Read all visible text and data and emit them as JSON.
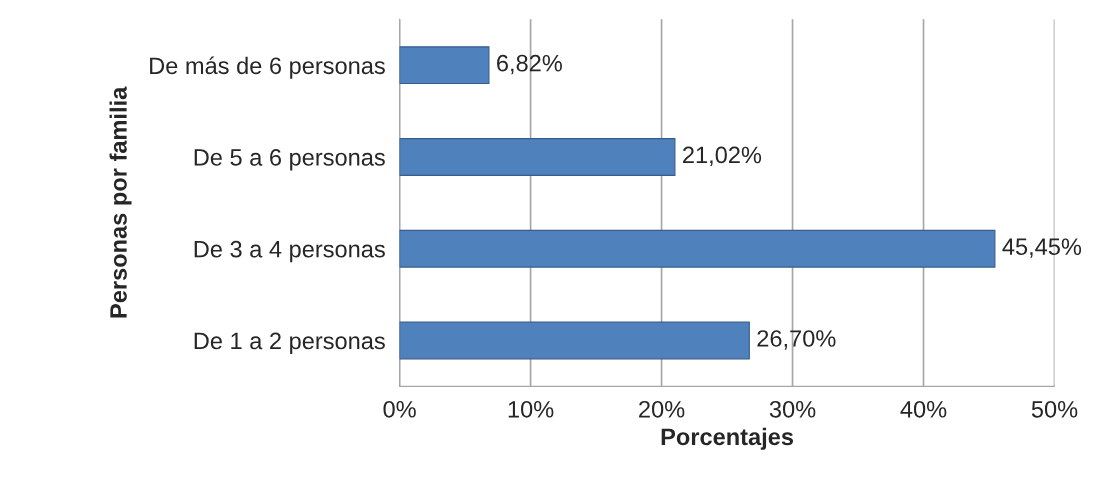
{
  "chart_data": {
    "type": "bar",
    "orientation": "horizontal",
    "xlabel": "Porcentajes",
    "ylabel": "Personas por familia",
    "categories": [
      "De más de 6 personas",
      "De 5 a 6 personas",
      "De 3 a 4 personas",
      "De 1 a 2 personas"
    ],
    "values": [
      6.82,
      21.02,
      45.45,
      26.7
    ],
    "value_labels": [
      "6,82%",
      "21,02%",
      "45,45%",
      "26,70%"
    ],
    "color": "#4f81bd",
    "xlim": [
      0,
      50
    ],
    "xticks": [
      {
        "value": 0,
        "label": "0%"
      },
      {
        "value": 10,
        "label": "10%"
      },
      {
        "value": 20,
        "label": "20%"
      },
      {
        "value": 30,
        "label": "30%"
      },
      {
        "value": 40,
        "label": "40%"
      },
      {
        "value": 50,
        "label": "50%"
      }
    ],
    "grid": "x",
    "legend": false
  }
}
